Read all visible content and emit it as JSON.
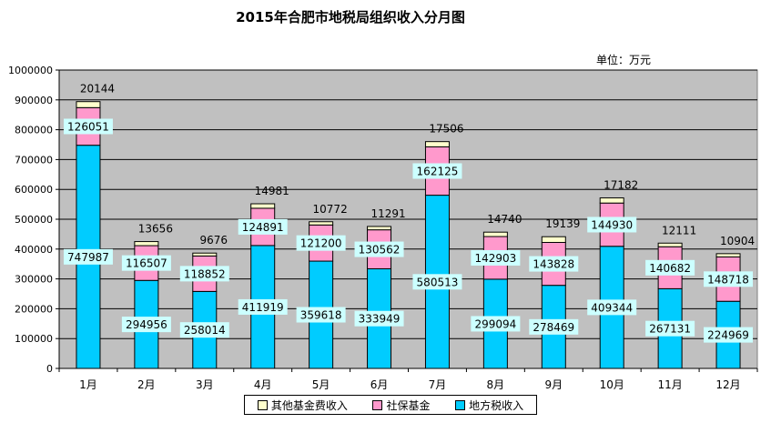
{
  "chart_data": {
    "type": "bar",
    "stacked": true,
    "title": "2015年合肥市地税局组织收入分月图",
    "unit": "单位：万元",
    "categories": [
      "1月",
      "2月",
      "3月",
      "4月",
      "5月",
      "6月",
      "7月",
      "8月",
      "9月",
      "10月",
      "11月",
      "12月"
    ],
    "ylim": [
      0,
      1000000
    ],
    "yticks": [
      "0",
      "100000",
      "200000",
      "300000",
      "400000",
      "500000",
      "600000",
      "700000",
      "800000",
      "900000",
      "1000000"
    ],
    "grid": true,
    "legend_position": "bottom",
    "series": [
      {
        "name": "地方税收入",
        "color": "#00ccff",
        "values": [
          747987,
          294956,
          258014,
          411919,
          359618,
          333949,
          580513,
          299094,
          278469,
          409344,
          267131,
          224969
        ]
      },
      {
        "name": "社保基金",
        "color": "#ff99cc",
        "values": [
          126051,
          116507,
          118852,
          124891,
          121200,
          130562,
          162125,
          142903,
          143828,
          144930,
          140682,
          148718
        ]
      },
      {
        "name": "其他基金费收入",
        "color": "#ffffcc",
        "values": [
          20144,
          13656,
          9676,
          14981,
          10772,
          11291,
          17506,
          14740,
          19139,
          17182,
          12111,
          10904
        ]
      }
    ],
    "legend_order": [
      "其他基金费收入",
      "社保基金",
      "地方税收入"
    ]
  }
}
